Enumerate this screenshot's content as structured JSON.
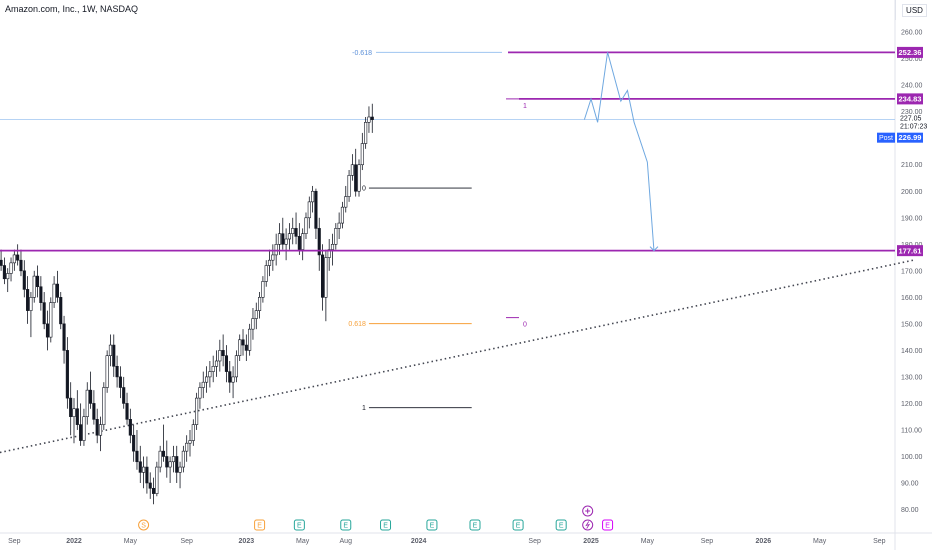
{
  "header": {
    "title": "Amazon.com, Inc., 1W, NASDAQ",
    "currency": "USD"
  },
  "colors": {
    "up": "#26a69a",
    "down": "#ef5350",
    "candle": "#131722",
    "level": "#9c27b0",
    "fib_blue": "#5b8fd8",
    "fib_orange": "#f7a13a",
    "projection": "#6fa8e0",
    "post": "#2962ff",
    "trend": "#434651"
  },
  "chart_data": {
    "type": "candlestick",
    "ylim": [
      75,
      265
    ],
    "price_ticks": [
      80,
      90,
      100,
      110,
      120,
      130,
      140,
      150,
      160,
      170,
      180,
      190,
      200,
      210,
      220,
      230,
      240,
      250,
      260
    ],
    "time_ticks": [
      "Sep",
      "2022",
      "May",
      "Sep",
      "2023",
      "May",
      "Aug",
      "2024",
      "Sep",
      "2025",
      "May",
      "Sep",
      "2026",
      "May",
      "Sep"
    ],
    "levels": [
      {
        "label": "252.36",
        "value": 252.36
      },
      {
        "label": "234.83",
        "value": 234.83
      },
      {
        "label": "177.61",
        "value": 177.61
      }
    ],
    "last_price": {
      "label": "227.05",
      "value": 227.05,
      "countdown": "21:07:23"
    },
    "post_market": {
      "label": "Post",
      "value_label": "226.99",
      "value": 226.99
    },
    "fib_upper": [
      {
        "label": "-0.618",
        "value": 252.36
      },
      {
        "label": "1",
        "value": 234.83
      },
      {
        "label": "0",
        "value": 151.6
      }
    ],
    "fib_lower": [
      {
        "label": "0",
        "value": 201.2
      },
      {
        "label": "0.618",
        "value": 150.1
      },
      {
        "label": "1",
        "value": 118.4
      }
    ],
    "projection": [
      {
        "date": "2024-12-20",
        "price": 227.0
      },
      {
        "date": "2025-01-03",
        "price": 234.8
      },
      {
        "date": "2025-01-17",
        "price": 226.0
      },
      {
        "date": "2025-02-07",
        "price": 252.4
      },
      {
        "date": "2025-03-07",
        "price": 234.0
      },
      {
        "date": "2025-03-21",
        "price": 238.0
      },
      {
        "date": "2025-04-04",
        "price": 226.0
      },
      {
        "date": "2025-05-02",
        "price": 211.0
      },
      {
        "date": "2025-05-16",
        "price": 177.6
      }
    ],
    "trendline": [
      {
        "date": "2021-07-16",
        "price": 100.8
      },
      {
        "date": "2026-11-20",
        "price": 174.2
      }
    ],
    "candles": [
      [
        175,
        178,
        170,
        173
      ],
      [
        173,
        176,
        165,
        168
      ],
      [
        168,
        172,
        160,
        162
      ],
      [
        162,
        170,
        158,
        167
      ],
      [
        167,
        178,
        164,
        176
      ],
      [
        176,
        178,
        168,
        171
      ],
      [
        171,
        175,
        165,
        166
      ],
      [
        166,
        172,
        162,
        169
      ],
      [
        169,
        176,
        166,
        174
      ],
      [
        174,
        178,
        170,
        172
      ],
      [
        172,
        175,
        165,
        167
      ],
      [
        167,
        171,
        162,
        169
      ],
      [
        169,
        175,
        166,
        173
      ],
      [
        173,
        178,
        170,
        176
      ],
      [
        176,
        180,
        172,
        174
      ],
      [
        174,
        178,
        168,
        170
      ],
      [
        170,
        174,
        160,
        163
      ],
      [
        163,
        168,
        150,
        155
      ],
      [
        155,
        162,
        145,
        160
      ],
      [
        160,
        170,
        158,
        168
      ],
      [
        168,
        172,
        160,
        164
      ],
      [
        164,
        168,
        155,
        158
      ],
      [
        158,
        162,
        148,
        150
      ],
      [
        150,
        155,
        140,
        145
      ],
      [
        145,
        160,
        143,
        158
      ],
      [
        158,
        168,
        156,
        165
      ],
      [
        165,
        170,
        158,
        160
      ],
      [
        160,
        162,
        148,
        150
      ],
      [
        150,
        153,
        135,
        140
      ],
      [
        140,
        145,
        118,
        122
      ],
      [
        122,
        128,
        108,
        115
      ],
      [
        115,
        122,
        105,
        118
      ],
      [
        118,
        125,
        110,
        112
      ],
      [
        112,
        120,
        104,
        106
      ],
      [
        106,
        118,
        104,
        115
      ],
      [
        115,
        128,
        112,
        125
      ],
      [
        125,
        132,
        118,
        120
      ],
      [
        120,
        125,
        112,
        114
      ],
      [
        114,
        118,
        105,
        108
      ],
      [
        108,
        115,
        102,
        112
      ],
      [
        112,
        128,
        110,
        126
      ],
      [
        126,
        140,
        124,
        138
      ],
      [
        138,
        146,
        134,
        142
      ],
      [
        142,
        146,
        130,
        134
      ],
      [
        134,
        138,
        126,
        130
      ],
      [
        130,
        134,
        122,
        126
      ],
      [
        126,
        130,
        118,
        120
      ],
      [
        120,
        124,
        112,
        114
      ],
      [
        114,
        118,
        105,
        108
      ],
      [
        108,
        112,
        98,
        102
      ],
      [
        102,
        110,
        95,
        98
      ],
      [
        98,
        104,
        90,
        94
      ],
      [
        94,
        100,
        88,
        96
      ],
      [
        96,
        100,
        86,
        90
      ],
      [
        90,
        94,
        84,
        88
      ],
      [
        88,
        92,
        82,
        86
      ],
      [
        86,
        98,
        85,
        96
      ],
      [
        96,
        104,
        94,
        102
      ],
      [
        102,
        112,
        98,
        100
      ],
      [
        100,
        106,
        92,
        96
      ],
      [
        96,
        100,
        90,
        98
      ],
      [
        98,
        104,
        94,
        100
      ],
      [
        100,
        104,
        90,
        94
      ],
      [
        94,
        98,
        88,
        96
      ],
      [
        96,
        104,
        94,
        102
      ],
      [
        102,
        108,
        98,
        105
      ],
      [
        105,
        110,
        100,
        106
      ],
      [
        106,
        114,
        104,
        112
      ],
      [
        112,
        124,
        110,
        122
      ],
      [
        122,
        128,
        118,
        126
      ],
      [
        126,
        132,
        122,
        128
      ],
      [
        128,
        134,
        124,
        130
      ],
      [
        130,
        136,
        126,
        132
      ],
      [
        132,
        138,
        128,
        134
      ],
      [
        134,
        140,
        130,
        136
      ],
      [
        136,
        144,
        132,
        140
      ],
      [
        140,
        146,
        134,
        138
      ],
      [
        138,
        142,
        128,
        132
      ],
      [
        132,
        136,
        124,
        128
      ],
      [
        128,
        134,
        122,
        130
      ],
      [
        130,
        140,
        128,
        138
      ],
      [
        138,
        146,
        136,
        144
      ],
      [
        144,
        148,
        138,
        142
      ],
      [
        142,
        146,
        136,
        140
      ],
      [
        140,
        150,
        138,
        148
      ],
      [
        148,
        156,
        144,
        152
      ],
      [
        152,
        158,
        148,
        155
      ],
      [
        155,
        162,
        152,
        160
      ],
      [
        160,
        168,
        158,
        166
      ],
      [
        166,
        174,
        164,
        172
      ],
      [
        172,
        178,
        168,
        174
      ],
      [
        174,
        180,
        170,
        176
      ],
      [
        176,
        184,
        172,
        180
      ],
      [
        180,
        188,
        176,
        184
      ],
      [
        184,
        190,
        178,
        180
      ],
      [
        180,
        186,
        174,
        182
      ],
      [
        182,
        188,
        178,
        184
      ],
      [
        184,
        190,
        180,
        186
      ],
      [
        186,
        192,
        180,
        183
      ],
      [
        183,
        188,
        176,
        178
      ],
      [
        178,
        186,
        174,
        184
      ],
      [
        184,
        192,
        182,
        190
      ],
      [
        190,
        198,
        186,
        196
      ],
      [
        196,
        202,
        192,
        200
      ],
      [
        200,
        201,
        182,
        186
      ],
      [
        186,
        190,
        170,
        176
      ],
      [
        176,
        180,
        155,
        160
      ],
      [
        160,
        178,
        151,
        175
      ],
      [
        175,
        182,
        170,
        178
      ],
      [
        178,
        184,
        172,
        180
      ],
      [
        180,
        188,
        178,
        186
      ],
      [
        186,
        192,
        182,
        188
      ],
      [
        188,
        196,
        186,
        194
      ],
      [
        194,
        202,
        192,
        198
      ],
      [
        198,
        208,
        196,
        206
      ],
      [
        206,
        214,
        204,
        210
      ],
      [
        210,
        216,
        198,
        200
      ],
      [
        200,
        212,
        198,
        210
      ],
      [
        210,
        222,
        208,
        218
      ],
      [
        218,
        228,
        216,
        226
      ],
      [
        226,
        232,
        222,
        228
      ],
      [
        228,
        233,
        222,
        227
      ]
    ],
    "candles_start": "2021-06-04",
    "events": [
      {
        "label": "S",
        "date": "2022-06-03",
        "color": "#f7a13a"
      },
      {
        "label": "E",
        "date": "2023-02-03",
        "color": "#f7a13a"
      },
      {
        "label": "E",
        "date": "2023-04-28",
        "color": "#26a69a"
      },
      {
        "label": "E",
        "date": "2023-08-04",
        "color": "#26a69a"
      },
      {
        "label": "E",
        "date": "2023-10-27",
        "color": "#26a69a"
      },
      {
        "label": "E",
        "date": "2024-02-02",
        "color": "#26a69a"
      },
      {
        "label": "E",
        "date": "2024-05-03",
        "color": "#26a69a"
      },
      {
        "label": "E",
        "date": "2024-08-02",
        "color": "#26a69a"
      },
      {
        "label": "E",
        "date": "2024-11-01",
        "color": "#26a69a"
      },
      {
        "label": "E",
        "date": "2025-02-07",
        "color": "#d500f9"
      }
    ]
  }
}
